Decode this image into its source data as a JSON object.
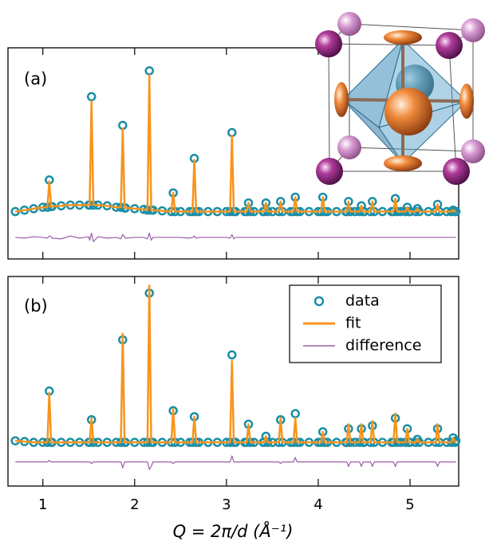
{
  "chart_data": [
    {
      "type": "line",
      "panel_label": "(a)",
      "xlim": [
        0.62,
        5.53
      ],
      "ylim": [
        -0.33,
        1.14
      ],
      "xticks": [
        1,
        2,
        3,
        4,
        5
      ],
      "x": [
        0.7,
        0.8,
        0.9,
        1.0,
        1.05,
        1.07,
        1.09,
        1.1,
        1.2,
        1.3,
        1.4,
        1.5,
        1.51,
        1.53,
        1.55,
        1.6,
        1.7,
        1.8,
        1.85,
        1.87,
        1.89,
        1.9,
        2.0,
        2.1,
        2.14,
        2.16,
        2.18,
        2.2,
        2.3,
        2.4,
        2.42,
        2.44,
        2.5,
        2.6,
        2.63,
        2.65,
        2.67,
        2.7,
        2.8,
        2.9,
        3.0,
        3.04,
        3.06,
        3.08,
        3.1,
        3.2,
        3.22,
        3.24,
        3.26,
        3.3,
        3.4,
        3.41,
        3.43,
        3.45,
        3.5,
        3.57,
        3.59,
        3.61,
        3.7,
        3.73,
        3.75,
        3.77,
        3.8,
        3.9,
        4.0,
        4.03,
        4.05,
        4.07,
        4.1,
        4.2,
        4.3,
        4.31,
        4.33,
        4.35,
        4.4,
        4.45,
        4.47,
        4.49,
        4.5,
        4.57,
        4.59,
        4.61,
        4.7,
        4.8,
        4.82,
        4.84,
        4.86,
        4.9,
        4.95,
        4.97,
        4.99,
        5.0,
        5.06,
        5.08,
        5.1,
        5.2,
        5.28,
        5.3,
        5.32,
        5.4,
        5.45,
        5.47,
        5.49,
        5.5
      ],
      "series": [
        {
          "color": "#1b8ea6",
          "marker": "circle",
          "values": [
            0,
            0.01,
            0.02,
            0.03,
            0.03,
            0.22,
            0.035,
            0.035,
            0.04,
            0.045,
            0.045,
            0.045,
            0.045,
            0.8,
            0.045,
            0.045,
            0.04,
            0.03,
            0.03,
            0.6,
            0.025,
            0.025,
            0.02,
            0.015,
            0.01,
            0.98,
            0.01,
            0.01,
            0.005,
            0,
            0.13,
            0,
            0,
            0,
            0,
            0.37,
            0,
            0,
            0,
            0,
            0,
            0,
            0.55,
            0,
            0,
            0,
            0,
            0.06,
            0,
            0,
            0,
            0,
            0.06,
            0,
            0,
            0,
            0.07,
            0,
            0,
            0,
            0.1,
            0,
            0,
            0,
            0,
            0,
            0.1,
            0,
            0,
            0,
            0,
            0,
            0.07,
            0,
            0,
            0,
            0.04,
            0,
            0,
            0,
            0.07,
            0,
            0,
            0,
            0,
            0.09,
            0,
            0,
            0,
            0.03,
            0,
            0,
            0,
            0.02,
            0,
            0,
            0,
            0.05,
            0,
            0,
            0,
            0.01,
            0,
            0
          ]
        },
        {
          "color": "#f7941d",
          "values": [
            0,
            0.01,
            0.02,
            0.03,
            0.03,
            0.21,
            0.035,
            0.035,
            0.04,
            0.045,
            0.045,
            0.045,
            0.045,
            0.77,
            0.045,
            0.045,
            0.04,
            0.03,
            0.03,
            0.58,
            0.025,
            0.025,
            0.02,
            0.015,
            0.01,
            0.95,
            0.01,
            0.01,
            0.005,
            0,
            0.13,
            0,
            0,
            0,
            0,
            0.36,
            0,
            0,
            0,
            0,
            0,
            0,
            0.53,
            0,
            0,
            0,
            0,
            0.06,
            0,
            0,
            0,
            0,
            0.06,
            0,
            0,
            0,
            0.07,
            0,
            0,
            0,
            0.1,
            0,
            0,
            0,
            0,
            0,
            0.1,
            0,
            0,
            0,
            0,
            0,
            0.07,
            0,
            0,
            0,
            0.04,
            0,
            0,
            0,
            0.07,
            0,
            0,
            0,
            0,
            0.09,
            0,
            0,
            0,
            0.03,
            0,
            0,
            0,
            0.02,
            0,
            0,
            0,
            0.05,
            0,
            0,
            0,
            0.01,
            0,
            0
          ]
        },
        {
          "color": "#9b5fa5",
          "values": [
            -0.18,
            -0.185,
            -0.175,
            -0.18,
            -0.185,
            -0.17,
            -0.175,
            -0.185,
            -0.19,
            -0.17,
            -0.185,
            -0.175,
            -0.2,
            -0.15,
            -0.21,
            -0.175,
            -0.185,
            -0.18,
            -0.19,
            -0.16,
            -0.175,
            -0.185,
            -0.18,
            -0.18,
            -0.19,
            -0.15,
            -0.2,
            -0.18,
            -0.18,
            -0.18,
            -0.18,
            -0.18,
            -0.18,
            -0.185,
            -0.18,
            -0.17,
            -0.185,
            -0.18,
            -0.18,
            -0.18,
            -0.18,
            -0.185,
            -0.16,
            -0.19,
            -0.18,
            -0.18,
            -0.18,
            -0.18,
            -0.18,
            -0.18,
            -0.18,
            -0.18,
            -0.18,
            -0.18,
            -0.18,
            -0.18,
            -0.18,
            -0.18,
            -0.18,
            -0.18,
            -0.18,
            -0.18,
            -0.18,
            -0.18,
            -0.18,
            -0.18,
            -0.18,
            -0.18,
            -0.18,
            -0.18,
            -0.18,
            -0.18,
            -0.18,
            -0.18,
            -0.18,
            -0.18,
            -0.18,
            -0.18,
            -0.18,
            -0.18,
            -0.18,
            -0.18,
            -0.18,
            -0.18,
            -0.18,
            -0.18,
            -0.18,
            -0.18,
            -0.18,
            -0.18,
            -0.18,
            -0.18,
            -0.18,
            -0.18,
            -0.18,
            -0.18,
            -0.18,
            -0.18,
            -0.18,
            -0.18,
            -0.18,
            -0.18,
            -0.18,
            -0.18
          ]
        }
      ]
    },
    {
      "type": "line",
      "panel_label": "(b)",
      "x_label": "Q = 2π/d (Å⁻¹)",
      "legend": "upper right",
      "xlim": [
        0.62,
        5.53
      ],
      "ylim": [
        -0.29,
        1.1
      ],
      "xticks": [
        1,
        2,
        3,
        4,
        5
      ],
      "x": [
        0.7,
        0.8,
        0.9,
        1.0,
        1.05,
        1.07,
        1.09,
        1.1,
        1.2,
        1.3,
        1.4,
        1.5,
        1.51,
        1.53,
        1.55,
        1.6,
        1.7,
        1.8,
        1.85,
        1.87,
        1.89,
        1.9,
        2.0,
        2.1,
        2.14,
        2.16,
        2.18,
        2.2,
        2.3,
        2.4,
        2.42,
        2.44,
        2.5,
        2.6,
        2.63,
        2.65,
        2.67,
        2.7,
        2.8,
        2.9,
        3.0,
        3.04,
        3.06,
        3.08,
        3.1,
        3.2,
        3.22,
        3.24,
        3.26,
        3.3,
        3.4,
        3.41,
        3.43,
        3.45,
        3.5,
        3.57,
        3.59,
        3.61,
        3.7,
        3.73,
        3.75,
        3.77,
        3.8,
        3.9,
        4.0,
        4.03,
        4.05,
        4.07,
        4.1,
        4.2,
        4.3,
        4.31,
        4.33,
        4.35,
        4.4,
        4.45,
        4.47,
        4.49,
        4.5,
        4.57,
        4.59,
        4.61,
        4.7,
        4.8,
        4.82,
        4.84,
        4.86,
        4.9,
        4.95,
        4.97,
        4.99,
        5.0,
        5.06,
        5.08,
        5.1,
        5.2,
        5.28,
        5.3,
        5.32,
        5.4,
        5.45,
        5.47,
        5.49,
        5.5
      ],
      "series": [
        {
          "name": "data",
          "color": "#1b8ea6",
          "marker": "circle",
          "values": [
            0.01,
            0.005,
            0,
            0,
            0,
            0.34,
            0,
            0,
            0,
            0,
            0,
            0,
            0,
            0.15,
            0,
            0,
            0,
            0,
            0,
            0.68,
            0,
            0,
            0,
            0,
            0,
            0.99,
            0,
            0,
            0,
            0,
            0.21,
            0,
            0,
            0,
            0,
            0.17,
            0,
            0,
            0,
            0,
            0,
            0,
            0.58,
            0,
            0,
            0,
            0,
            0.12,
            0,
            0,
            0,
            0,
            0.04,
            0,
            0,
            0,
            0.15,
            0,
            0,
            0,
            0.19,
            0,
            0,
            0,
            0,
            0,
            0.07,
            0,
            0,
            0,
            0,
            0,
            0.09,
            0,
            0,
            0,
            0.09,
            0,
            0,
            0,
            0.11,
            0,
            0,
            0,
            0,
            0.16,
            0,
            0,
            0,
            0.09,
            0,
            0,
            0,
            0.02,
            0,
            0,
            0,
            0.09,
            0,
            0,
            0,
            0.03,
            0,
            0.01
          ]
        },
        {
          "name": "fit",
          "color": "#f7941d",
          "values": [
            0.01,
            0.005,
            0,
            0,
            0,
            0.33,
            0,
            0,
            0,
            0,
            0,
            0,
            0,
            0.16,
            0,
            0,
            0,
            0,
            0,
            0.72,
            0,
            0,
            0,
            0,
            0,
            1.04,
            0,
            0,
            0,
            0,
            0.22,
            0,
            0,
            0,
            0,
            0.17,
            0,
            0,
            0,
            0,
            0,
            0,
            0.54,
            0,
            0,
            0,
            0,
            0.12,
            0,
            0,
            0,
            0,
            0.04,
            0,
            0,
            0,
            0.16,
            0,
            0,
            0,
            0.16,
            0,
            0,
            0,
            0,
            0,
            0.07,
            0,
            0,
            0,
            0,
            0,
            0.12,
            0,
            0,
            0,
            0.12,
            0,
            0,
            0,
            0.14,
            0,
            0,
            0,
            0,
            0.19,
            0,
            0,
            0,
            0.09,
            0,
            0,
            0,
            0.02,
            0,
            0,
            0,
            0.12,
            0,
            0,
            0,
            0.03,
            0,
            0.01
          ]
        },
        {
          "name": "difference",
          "color": "#9b5fa5",
          "values": [
            -0.13,
            -0.13,
            -0.13,
            -0.13,
            -0.13,
            -0.12,
            -0.13,
            -0.13,
            -0.13,
            -0.13,
            -0.13,
            -0.13,
            -0.13,
            -0.14,
            -0.13,
            -0.13,
            -0.13,
            -0.13,
            -0.13,
            -0.17,
            -0.13,
            -0.13,
            -0.13,
            -0.13,
            -0.13,
            -0.18,
            -0.16,
            -0.13,
            -0.13,
            -0.13,
            -0.14,
            -0.13,
            -0.13,
            -0.13,
            -0.13,
            -0.13,
            -0.13,
            -0.13,
            -0.13,
            -0.13,
            -0.13,
            -0.13,
            -0.09,
            -0.13,
            -0.13,
            -0.13,
            -0.13,
            -0.13,
            -0.13,
            -0.13,
            -0.13,
            -0.13,
            -0.13,
            -0.13,
            -0.13,
            -0.13,
            -0.14,
            -0.13,
            -0.13,
            -0.13,
            -0.1,
            -0.13,
            -0.13,
            -0.13,
            -0.13,
            -0.13,
            -0.13,
            -0.13,
            -0.13,
            -0.13,
            -0.13,
            -0.13,
            -0.16,
            -0.13,
            -0.13,
            -0.13,
            -0.16,
            -0.13,
            -0.13,
            -0.13,
            -0.16,
            -0.13,
            -0.13,
            -0.13,
            -0.13,
            -0.16,
            -0.13,
            -0.13,
            -0.13,
            -0.13,
            -0.13,
            -0.13,
            -0.13,
            -0.13,
            -0.13,
            -0.13,
            -0.13,
            -0.16,
            -0.13,
            -0.13,
            -0.13,
            -0.13,
            -0.13,
            -0.13
          ]
        }
      ]
    }
  ]
}
